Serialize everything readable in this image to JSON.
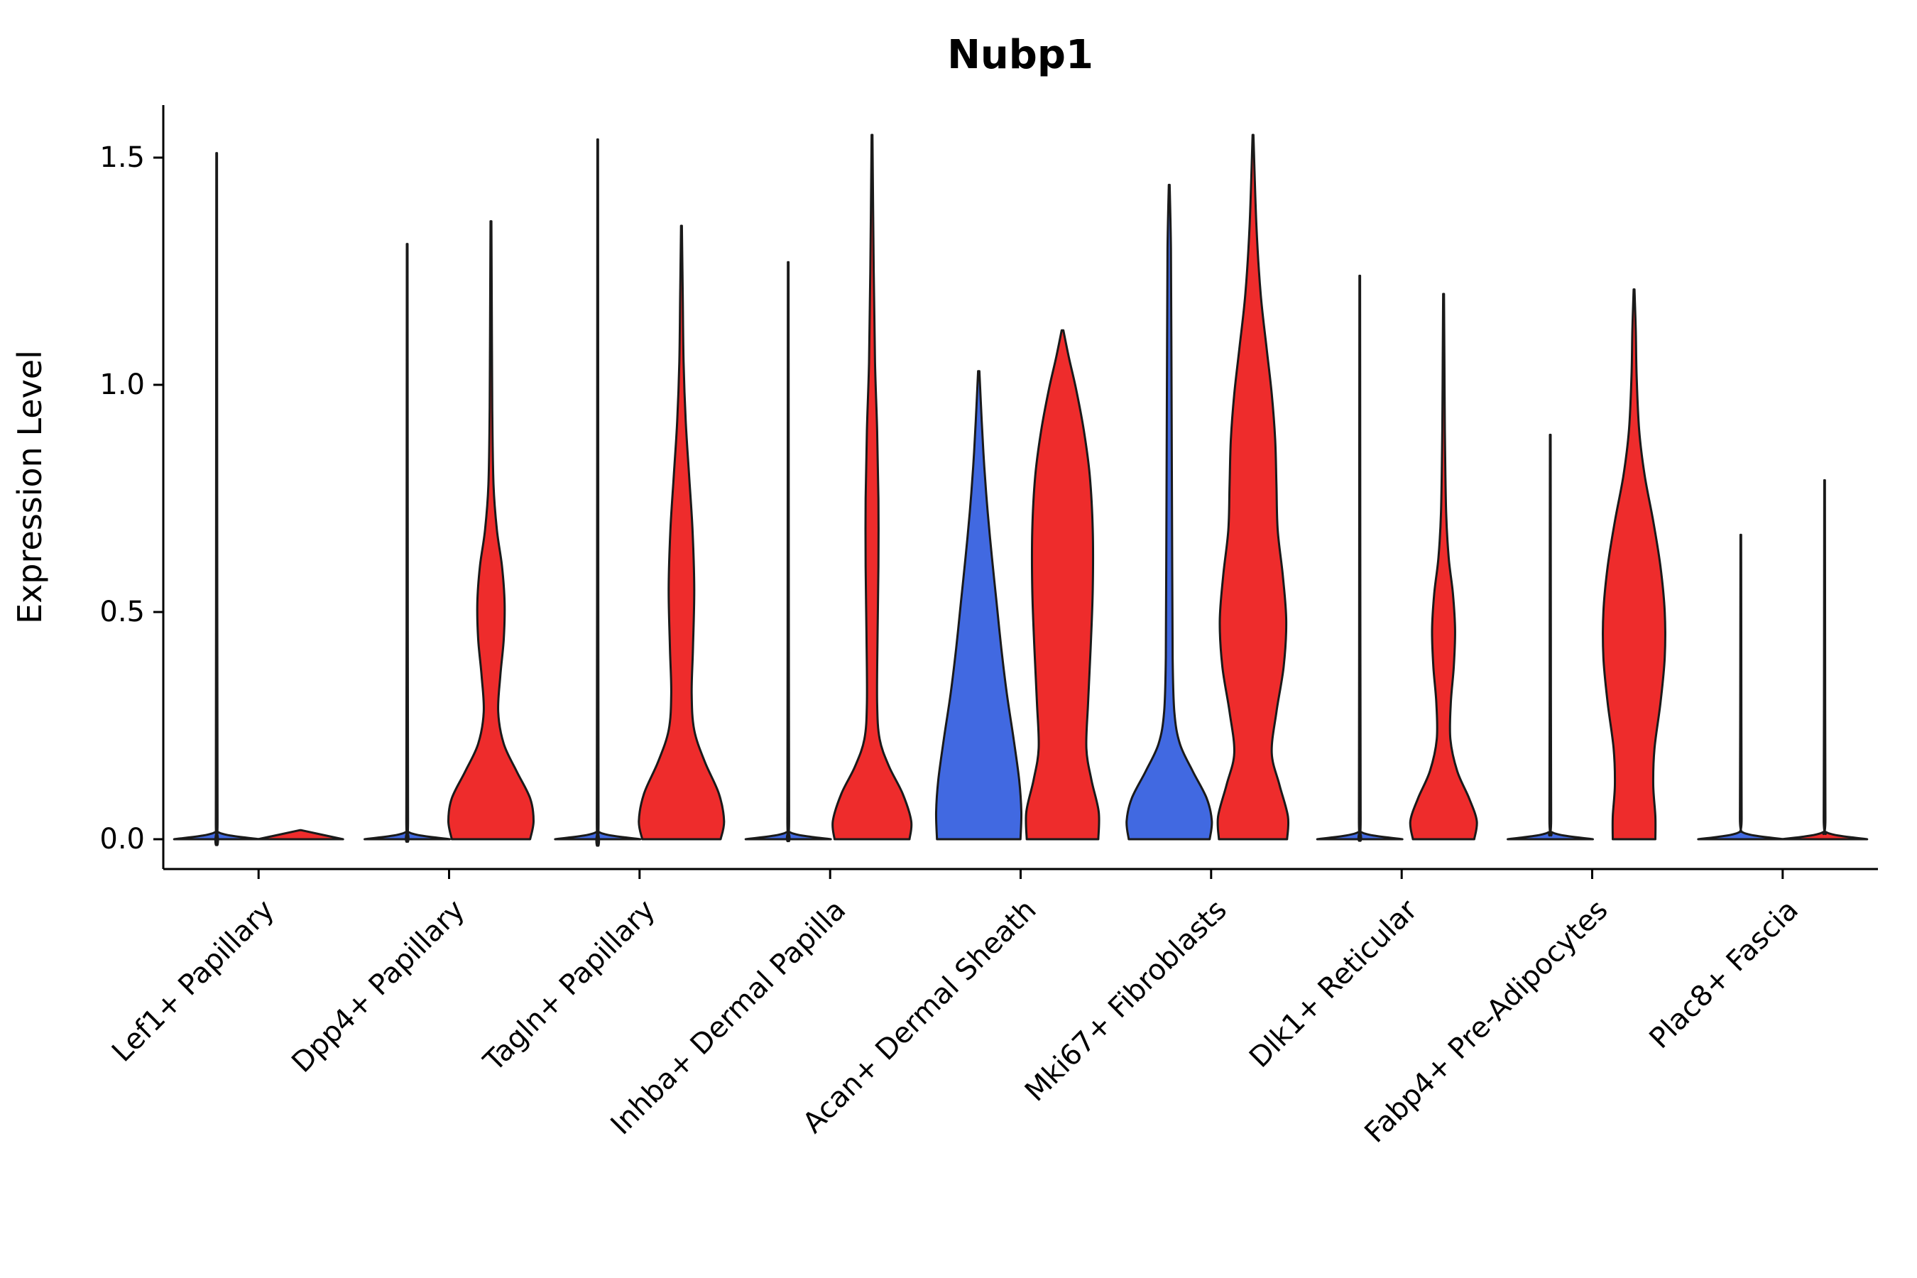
{
  "title": "Nubp1",
  "chart_data": {
    "type": "violin",
    "title": "Nubp1",
    "xlabel": "",
    "ylabel": "Expression Level",
    "grid": false,
    "legend": "none",
    "yticks": [
      0.0,
      0.5,
      1.0,
      1.5
    ],
    "ylim": [
      -0.07,
      1.62
    ],
    "categories": [
      "Lef1+ Papillary",
      "Dpp4+ Papillary",
      "Tagln+ Papillary",
      "Inhba+ Dermal Papilla",
      "Acan+ Dermal Sheath",
      "Mki67+ Fibroblasts",
      "Dlk1+ Reticular",
      "Fabp4+ Pre-Adipocytes",
      "Plac8+ Fascia"
    ],
    "palette": {
      "blue": "#4169E1",
      "red": "#EE2C2C",
      "edge": "#1A1A1A"
    },
    "violins": [
      {
        "category": "Lef1+ Papillary",
        "side": "left",
        "color": "blue",
        "max": 1.51,
        "profile": [
          [
            0,
            1.0
          ],
          [
            0.015,
            0.05
          ],
          [
            0.05,
            0.02
          ],
          [
            0.75,
            0.013
          ],
          [
            1.51,
            0.008
          ]
        ]
      },
      {
        "category": "Lef1+ Papillary",
        "side": "right",
        "color": "red",
        "max": 0.02,
        "profile": [
          [
            0,
            1.0
          ],
          [
            0.02,
            0.01
          ]
        ]
      },
      {
        "category": "Dpp4+ Papillary",
        "side": "left",
        "color": "blue",
        "max": 1.31,
        "profile": [
          [
            0,
            1.0
          ],
          [
            0.015,
            0.05
          ],
          [
            0.05,
            0.02
          ],
          [
            0.65,
            0.013
          ],
          [
            1.31,
            0.008
          ]
        ]
      },
      {
        "category": "Dpp4+ Papillary",
        "side": "right",
        "color": "red",
        "max": 1.36,
        "profile": [
          [
            0,
            0.92
          ],
          [
            0.04,
            1.0
          ],
          [
            0.09,
            0.92
          ],
          [
            0.15,
            0.6
          ],
          [
            0.21,
            0.3
          ],
          [
            0.28,
            0.17
          ],
          [
            0.36,
            0.22
          ],
          [
            0.44,
            0.3
          ],
          [
            0.52,
            0.32
          ],
          [
            0.6,
            0.26
          ],
          [
            0.68,
            0.14
          ],
          [
            0.78,
            0.06
          ],
          [
            0.95,
            0.03
          ],
          [
            1.15,
            0.02
          ],
          [
            1.36,
            0.01
          ]
        ]
      },
      {
        "category": "Tagln+ Papillary",
        "side": "left",
        "color": "blue",
        "max": 1.54,
        "profile": [
          [
            0,
            1.0
          ],
          [
            0.015,
            0.05
          ],
          [
            0.05,
            0.02
          ],
          [
            0.77,
            0.013
          ],
          [
            1.54,
            0.008
          ]
        ]
      },
      {
        "category": "Tagln+ Papillary",
        "side": "right",
        "color": "red",
        "max": 1.35,
        "profile": [
          [
            0,
            0.92
          ],
          [
            0.04,
            1.0
          ],
          [
            0.1,
            0.88
          ],
          [
            0.17,
            0.55
          ],
          [
            0.24,
            0.3
          ],
          [
            0.32,
            0.24
          ],
          [
            0.42,
            0.27
          ],
          [
            0.55,
            0.3
          ],
          [
            0.68,
            0.26
          ],
          [
            0.8,
            0.18
          ],
          [
            0.92,
            0.1
          ],
          [
            1.05,
            0.05
          ],
          [
            1.2,
            0.03
          ],
          [
            1.35,
            0.01
          ]
        ]
      },
      {
        "category": "Inhba+ Dermal Papilla",
        "side": "left",
        "color": "blue",
        "max": 1.27,
        "profile": [
          [
            0,
            1.0
          ],
          [
            0.015,
            0.05
          ],
          [
            0.05,
            0.02
          ],
          [
            0.63,
            0.013
          ],
          [
            1.27,
            0.008
          ]
        ]
      },
      {
        "category": "Inhba+ Dermal Papilla",
        "side": "right",
        "color": "red",
        "max": 1.55,
        "profile": [
          [
            0,
            0.88
          ],
          [
            0.04,
            0.92
          ],
          [
            0.1,
            0.72
          ],
          [
            0.16,
            0.4
          ],
          [
            0.22,
            0.18
          ],
          [
            0.3,
            0.12
          ],
          [
            0.45,
            0.13
          ],
          [
            0.6,
            0.15
          ],
          [
            0.75,
            0.15
          ],
          [
            0.9,
            0.12
          ],
          [
            1.05,
            0.07
          ],
          [
            1.25,
            0.04
          ],
          [
            1.55,
            0.01
          ]
        ]
      },
      {
        "category": "Acan+ Dermal Sheath",
        "side": "left",
        "color": "blue",
        "max": 1.03,
        "profile": [
          [
            0,
            0.98
          ],
          [
            0.06,
            1.0
          ],
          [
            0.13,
            0.95
          ],
          [
            0.22,
            0.82
          ],
          [
            0.32,
            0.66
          ],
          [
            0.42,
            0.53
          ],
          [
            0.52,
            0.42
          ],
          [
            0.62,
            0.31
          ],
          [
            0.72,
            0.21
          ],
          [
            0.82,
            0.13
          ],
          [
            0.92,
            0.07
          ],
          [
            1.03,
            0.015
          ]
        ]
      },
      {
        "category": "Acan+ Dermal Sheath",
        "side": "right",
        "color": "red",
        "max": 1.12,
        "profile": [
          [
            0,
            0.84
          ],
          [
            0.06,
            0.85
          ],
          [
            0.13,
            0.68
          ],
          [
            0.2,
            0.56
          ],
          [
            0.3,
            0.6
          ],
          [
            0.42,
            0.66
          ],
          [
            0.55,
            0.71
          ],
          [
            0.68,
            0.71
          ],
          [
            0.8,
            0.64
          ],
          [
            0.9,
            0.5
          ],
          [
            0.99,
            0.32
          ],
          [
            1.06,
            0.15
          ],
          [
            1.12,
            0.02
          ]
        ]
      },
      {
        "category": "Mki67+ Fibroblasts",
        "side": "left",
        "color": "blue",
        "max": 1.44,
        "profile": [
          [
            0,
            0.95
          ],
          [
            0.04,
            1.0
          ],
          [
            0.09,
            0.88
          ],
          [
            0.15,
            0.55
          ],
          [
            0.21,
            0.25
          ],
          [
            0.28,
            0.12
          ],
          [
            0.4,
            0.08
          ],
          [
            0.6,
            0.07
          ],
          [
            0.85,
            0.06
          ],
          [
            1.1,
            0.05
          ],
          [
            1.3,
            0.04
          ],
          [
            1.44,
            0.01
          ]
        ]
      },
      {
        "category": "Mki67+ Fibroblasts",
        "side": "right",
        "color": "red",
        "max": 1.55,
        "profile": [
          [
            0,
            0.8
          ],
          [
            0.05,
            0.82
          ],
          [
            0.12,
            0.62
          ],
          [
            0.19,
            0.44
          ],
          [
            0.28,
            0.55
          ],
          [
            0.38,
            0.72
          ],
          [
            0.48,
            0.78
          ],
          [
            0.58,
            0.7
          ],
          [
            0.68,
            0.58
          ],
          [
            0.78,
            0.55
          ],
          [
            0.88,
            0.52
          ],
          [
            0.98,
            0.44
          ],
          [
            1.08,
            0.32
          ],
          [
            1.2,
            0.18
          ],
          [
            1.35,
            0.08
          ],
          [
            1.55,
            0.01
          ]
        ]
      },
      {
        "category": "Dlk1+ Reticular",
        "side": "left",
        "color": "blue",
        "max": 1.24,
        "profile": [
          [
            0,
            1.0
          ],
          [
            0.015,
            0.05
          ],
          [
            0.05,
            0.02
          ],
          [
            0.62,
            0.013
          ],
          [
            1.24,
            0.008
          ]
        ]
      },
      {
        "category": "Dlk1+ Reticular",
        "side": "right",
        "color": "red",
        "max": 1.2,
        "profile": [
          [
            0,
            0.72
          ],
          [
            0.04,
            0.78
          ],
          [
            0.09,
            0.6
          ],
          [
            0.15,
            0.32
          ],
          [
            0.22,
            0.16
          ],
          [
            0.3,
            0.17
          ],
          [
            0.38,
            0.24
          ],
          [
            0.46,
            0.27
          ],
          [
            0.54,
            0.22
          ],
          [
            0.62,
            0.12
          ],
          [
            0.72,
            0.06
          ],
          [
            0.9,
            0.03
          ],
          [
            1.05,
            0.02
          ],
          [
            1.2,
            0.01
          ]
        ]
      },
      {
        "category": "Fabp4+ Pre-Adipocytes",
        "side": "left",
        "color": "blue",
        "max": 0.89,
        "profile": [
          [
            0,
            1.0
          ],
          [
            0.015,
            0.05
          ],
          [
            0.05,
            0.02
          ],
          [
            0.45,
            0.013
          ],
          [
            0.89,
            0.008
          ]
        ]
      },
      {
        "category": "Fabp4+ Pre-Adipocytes",
        "side": "right",
        "color": "red",
        "max": 1.21,
        "profile": [
          [
            0,
            0.5
          ],
          [
            0.05,
            0.5
          ],
          [
            0.12,
            0.45
          ],
          [
            0.2,
            0.48
          ],
          [
            0.3,
            0.62
          ],
          [
            0.4,
            0.72
          ],
          [
            0.5,
            0.72
          ],
          [
            0.6,
            0.62
          ],
          [
            0.7,
            0.45
          ],
          [
            0.8,
            0.25
          ],
          [
            0.9,
            0.12
          ],
          [
            1.02,
            0.06
          ],
          [
            1.12,
            0.04
          ],
          [
            1.21,
            0.01
          ]
        ]
      },
      {
        "category": "Plac8+ Fascia",
        "side": "left",
        "color": "blue",
        "max": 0.67,
        "profile": [
          [
            0,
            1.0
          ],
          [
            0.015,
            0.05
          ],
          [
            0.05,
            0.02
          ],
          [
            0.33,
            0.013
          ],
          [
            0.67,
            0.008
          ]
        ]
      },
      {
        "category": "Plac8+ Fascia",
        "side": "right",
        "color": "red",
        "max": 0.79,
        "profile": [
          [
            0,
            1.0
          ],
          [
            0.015,
            0.05
          ],
          [
            0.05,
            0.02
          ],
          [
            0.4,
            0.013
          ],
          [
            0.79,
            0.008
          ]
        ]
      }
    ]
  }
}
